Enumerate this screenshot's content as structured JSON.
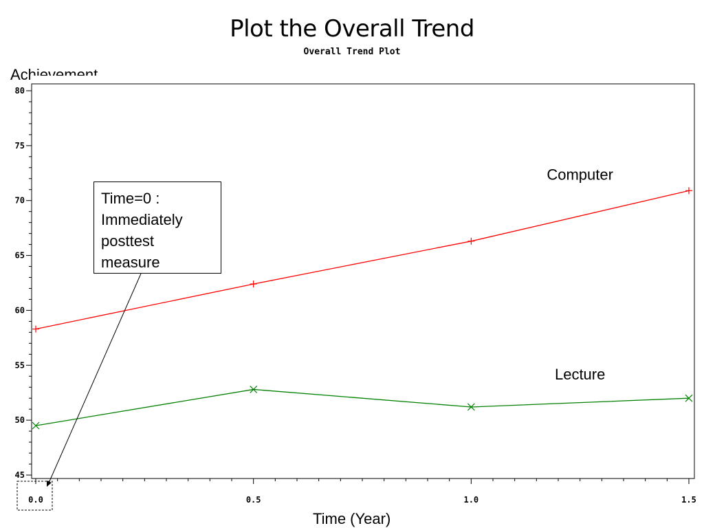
{
  "slide": {
    "title": "Plot the Overall Trend"
  },
  "callout": {
    "lines": [
      "Time=0 :",
      "Immediately",
      "posttest",
      "measure"
    ]
  },
  "colors": {
    "computer": "#ff0000",
    "lecture": "#008000",
    "axis": "#000000"
  },
  "chart_data": {
    "type": "line",
    "title": "Overall Trend Plot",
    "xlabel": "Time (Year)",
    "ylabel": "Achievement",
    "x": [
      0.0,
      0.5,
      1.0,
      1.5
    ],
    "xlim": [
      0.0,
      1.5
    ],
    "ylim": [
      45,
      80
    ],
    "x_ticks": [
      "0.0",
      "0.5",
      "1.0",
      "1.5"
    ],
    "y_ticks": [
      "45",
      "50",
      "55",
      "60",
      "65",
      "70",
      "75",
      "80"
    ],
    "grid": false,
    "series": [
      {
        "name": "Computer",
        "values": [
          58.3,
          62.4,
          66.3,
          70.9
        ],
        "marker": "plus"
      },
      {
        "name": "Lecture",
        "values": [
          49.5,
          52.8,
          51.2,
          52.0
        ],
        "marker": "x"
      }
    ]
  }
}
